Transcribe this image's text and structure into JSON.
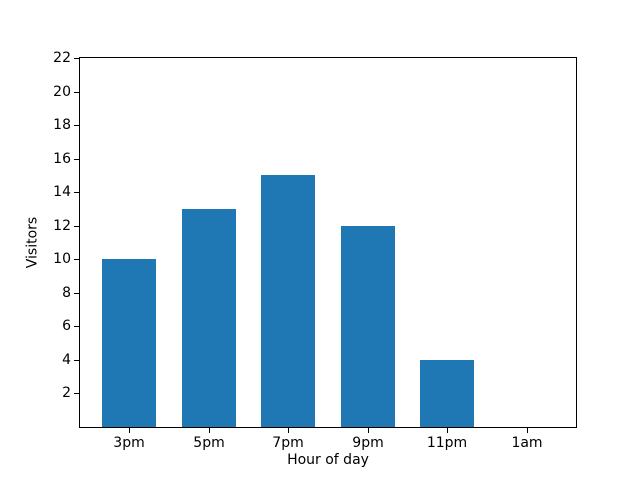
{
  "chart_data": {
    "type": "bar",
    "title": "",
    "xlabel": "Hour of day",
    "ylabel": "Visitors",
    "categories": [
      "3pm",
      "5pm",
      "7pm",
      "9pm",
      "11pm",
      "1am"
    ],
    "values": [
      10,
      13,
      15,
      12,
      4,
      0
    ],
    "yticks": [
      2,
      4,
      6,
      8,
      10,
      12,
      14,
      16,
      18,
      20,
      22
    ],
    "ylim": [
      0,
      22
    ],
    "bar_color": "#1f77b4",
    "axis_color": "#000000",
    "background_color": "#ffffff",
    "grid": false,
    "legend": "none"
  }
}
